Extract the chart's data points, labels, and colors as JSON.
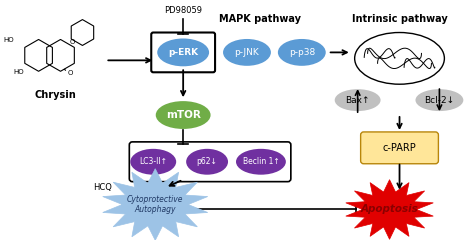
{
  "bg_color": "#ffffff",
  "chrysin_label": "Chrysin",
  "mapk_label": "MAPK pathway",
  "intrinsic_label": "Intrinsic pathway",
  "pd_label": "PD98059",
  "hcq_label": "HCQ",
  "perk_label": "p-ERK",
  "pjnk_label": "p-JNK",
  "pp38_label": "p-p38",
  "mtor_label": "mTOR",
  "lc3_label": "LC3-II↑",
  "p62_label": "p62↓",
  "beclin_label": "Beclin 1↑",
  "bax_label": "Bax↑",
  "bcl2_label": "Bcl-2↓",
  "cparp_label": "c-PARP",
  "autophagy_label": "Cytoprotective\nAutophagy",
  "apoptosis_label": "Apoptosis",
  "blue_color": "#5B9BD5",
  "green_color": "#70AD47",
  "purple_color": "#7030A0",
  "gray_color": "#C0C0C0",
  "yellow_color": "#FFE699",
  "red_color": "#FF0000",
  "light_blue_color": "#9DC3E6",
  "dark_blue_text": "#1F3864"
}
